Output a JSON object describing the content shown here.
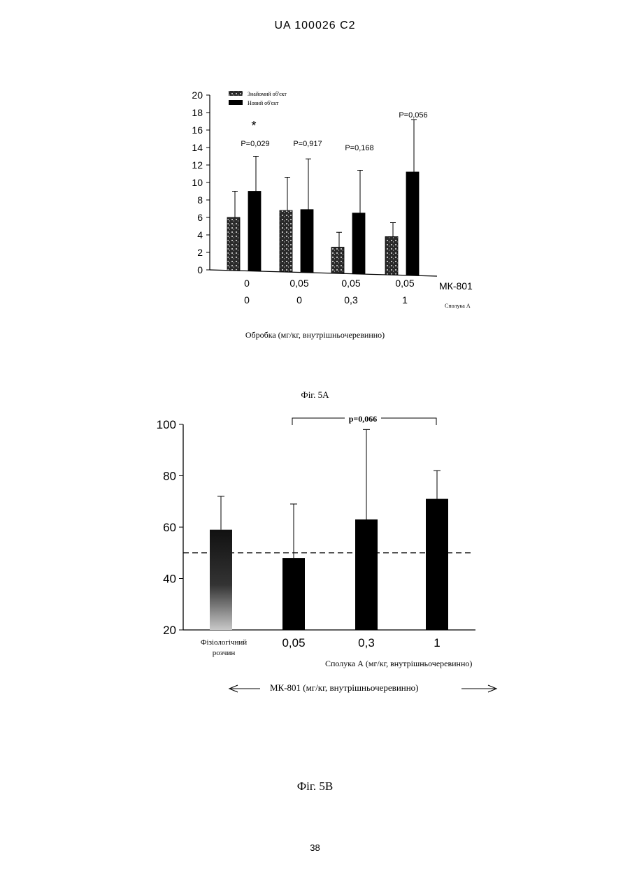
{
  "header": "UA   100026   C2",
  "page_number": "38",
  "chart_data": [
    {
      "type": "bar",
      "caption": "Фіг. 5A",
      "xlabel": "Обробка (мг/кг, внутрішньочеревинно)",
      "ylim": [
        0,
        20
      ],
      "yticks": [
        "0",
        "2",
        "4",
        "6",
        "8",
        "10",
        "12",
        "14",
        "16",
        "18",
        "20"
      ],
      "legend": [
        "Знайомий об'єкт",
        "Новий об'єкт"
      ],
      "legend_position": "top-left",
      "row_labels": [
        "МК-801",
        "Сполука А"
      ],
      "groups": [
        {
          "mk801": "0",
          "compound": "0",
          "p": "P=0,029",
          "star": "*"
        },
        {
          "mk801": "0,05",
          "compound": "0",
          "p": "P=0,917",
          "star": ""
        },
        {
          "mk801": "0,05",
          "compound": "0,3",
          "p": "P=0,168",
          "star": ""
        },
        {
          "mk801": "0,05",
          "compound": "1",
          "p": "P=0,056",
          "star": ""
        }
      ],
      "series": [
        {
          "name": "Знайомий об'єкт",
          "values": [
            6,
            6.8,
            2.6,
            3.8
          ],
          "errors": [
            3,
            3.8,
            1.7,
            1.6
          ]
        },
        {
          "name": "Новий об'єкт",
          "values": [
            9,
            6.9,
            6.5,
            11.2
          ],
          "errors": [
            4,
            5.8,
            4.9,
            6
          ]
        }
      ]
    },
    {
      "type": "bar",
      "caption": "Фіг. 5B",
      "ylim": [
        20,
        100
      ],
      "yticks": [
        "20",
        "40",
        "60",
        "80",
        "100"
      ],
      "categories": [
        "Фізіологічний розчин",
        "0,05",
        "0,3",
        "1"
      ],
      "values": [
        59,
        48,
        63,
        71
      ],
      "errors": [
        13,
        21,
        35,
        11
      ],
      "reference_line": 50,
      "compound_label": "Сполука А (мг/кг, внутрішньочеревинно)",
      "mk801_label": "МК-801 (мг/кг, внутрішньочеревинно)",
      "bracket_label": "p=0,066"
    }
  ]
}
